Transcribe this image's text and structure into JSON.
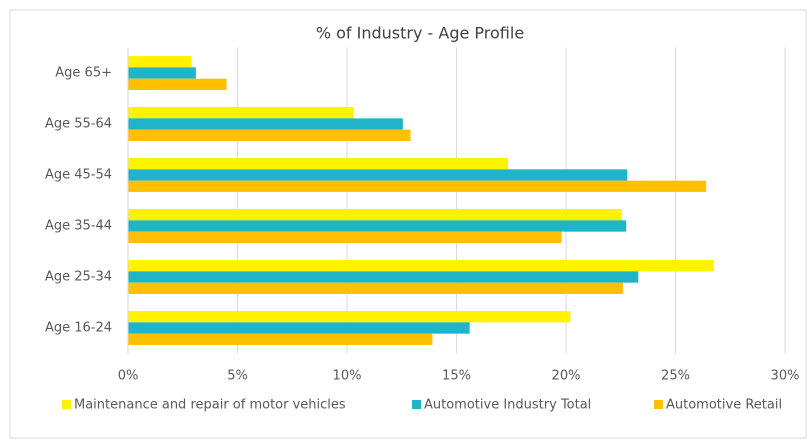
{
  "chart_data": {
    "type": "hbar",
    "title": "% of Industry - Age Profile",
    "categories": [
      "Age 65+",
      "Age 55-64",
      "Age 45-54",
      "Age 35-44",
      "Age 25-34",
      "Age 16-24"
    ],
    "series": [
      {
        "name": "Maintenance and repair of motor vehicles",
        "color": "#fff200",
        "values": [
          2.9,
          10.3,
          17.35,
          22.55,
          26.75,
          20.2
        ]
      },
      {
        "name": "Automotive Industry Total",
        "color": "#1fb5c8",
        "values": [
          3.1,
          12.55,
          22.8,
          22.75,
          23.3,
          15.6
        ]
      },
      {
        "name": "Automotive Retail",
        "color": "#ffc000",
        "values": [
          4.5,
          12.9,
          26.4,
          19.8,
          22.6,
          13.9
        ]
      }
    ],
    "xlim": [
      0,
      30
    ],
    "xticks": [
      {
        "value": 0,
        "label": "0%"
      },
      {
        "value": 5,
        "label": "5%"
      },
      {
        "value": 10,
        "label": "10%"
      },
      {
        "value": 15,
        "label": "15%"
      },
      {
        "value": 20,
        "label": "20%"
      },
      {
        "value": 25,
        "label": "25%"
      },
      {
        "value": 30,
        "label": "30%"
      }
    ],
    "grid": true
  }
}
